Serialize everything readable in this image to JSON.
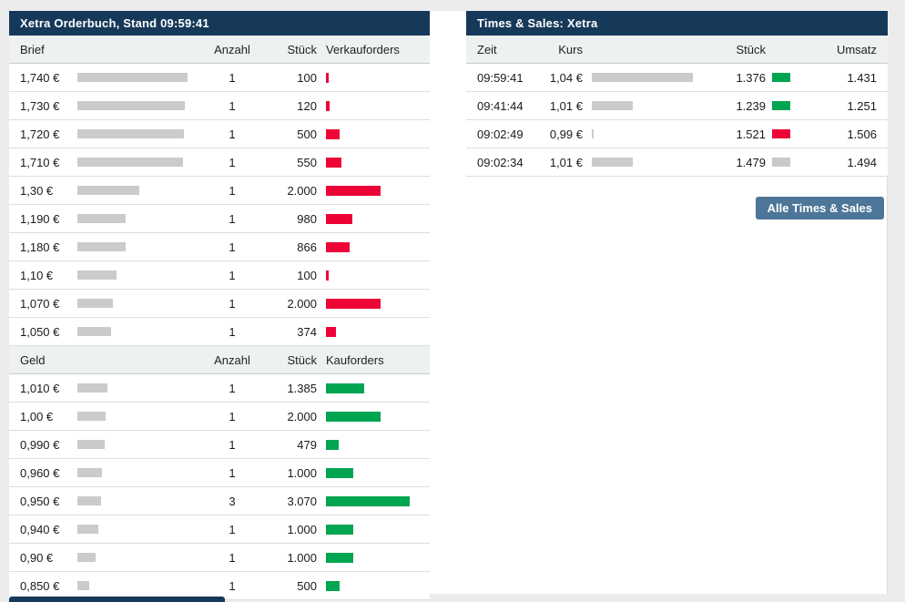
{
  "colors": {
    "navy_header": "#16395a",
    "ask_red": "#ed0437",
    "bid_green": "#00a551",
    "depth_bar_gray": "#cbcbcb",
    "neutral_gray": "#c9c9c9",
    "button_blue": "#4d7698",
    "page_bg": "#ececec",
    "band_bg": "#eef1f1"
  },
  "orderbook": {
    "title": "Xetra Orderbuch, Stand 09:59:41",
    "ask_header": {
      "price": "Brief",
      "count": "Anzahl",
      "size": "Stück",
      "orders": "Verkauforders"
    },
    "bid_header": {
      "price": "Geld",
      "count": "Anzahl",
      "size": "Stück",
      "orders": "Kauforders"
    },
    "ask_rows": [
      {
        "price": "1,740 €",
        "price_bar": 121,
        "count": "1",
        "size": "100",
        "order_bar": 3
      },
      {
        "price": "1,730 €",
        "price_bar": 118,
        "count": "1",
        "size": "120",
        "order_bar": 4
      },
      {
        "price": "1,720 €",
        "price_bar": 117,
        "count": "1",
        "size": "500",
        "order_bar": 15
      },
      {
        "price": "1,710 €",
        "price_bar": 116,
        "count": "1",
        "size": "550",
        "order_bar": 17
      },
      {
        "price": "1,30 €",
        "price_bar": 68,
        "count": "1",
        "size": "2.000",
        "order_bar": 60
      },
      {
        "price": "1,190 €",
        "price_bar": 53,
        "count": "1",
        "size": "980",
        "order_bar": 29
      },
      {
        "price": "1,180 €",
        "price_bar": 53,
        "count": "1",
        "size": "866",
        "order_bar": 26
      },
      {
        "price": "1,10 €",
        "price_bar": 43,
        "count": "1",
        "size": "100",
        "order_bar": 3
      },
      {
        "price": "1,070 €",
        "price_bar": 39,
        "count": "1",
        "size": "2.000",
        "order_bar": 60
      },
      {
        "price": "1,050 €",
        "price_bar": 37,
        "count": "1",
        "size": "374",
        "order_bar": 11
      }
    ],
    "bid_rows": [
      {
        "price": "1,010 €",
        "price_bar": 33,
        "count": "1",
        "size": "1.385",
        "order_bar": 42
      },
      {
        "price": "1,00 €",
        "price_bar": 31,
        "count": "1",
        "size": "2.000",
        "order_bar": 60
      },
      {
        "price": "0,990 €",
        "price_bar": 30,
        "count": "1",
        "size": "479",
        "order_bar": 14
      },
      {
        "price": "0,960 €",
        "price_bar": 27,
        "count": "1",
        "size": "1.000",
        "order_bar": 30
      },
      {
        "price": "0,950 €",
        "price_bar": 26,
        "count": "3",
        "size": "3.070",
        "order_bar": 92
      },
      {
        "price": "0,940 €",
        "price_bar": 23,
        "count": "1",
        "size": "1.000",
        "order_bar": 30
      },
      {
        "price": "0,90 €",
        "price_bar": 20,
        "count": "1",
        "size": "1.000",
        "order_bar": 30
      },
      {
        "price": "0,850 €",
        "price_bar": 13,
        "count": "1",
        "size": "500",
        "order_bar": 15
      }
    ]
  },
  "times_sales": {
    "title": "Times & Sales: Xetra",
    "header": {
      "time": "Zeit",
      "price": "Kurs",
      "size": "Stück",
      "turnover": "Umsatz"
    },
    "rows": [
      {
        "time": "09:59:41",
        "price": "1,04 €",
        "price_bar": 111,
        "size": "1.376",
        "direction": "up",
        "turnover": "1.431"
      },
      {
        "time": "09:41:44",
        "price": "1,01 €",
        "price_bar": 45,
        "size": "1.239",
        "direction": "up",
        "turnover": "1.251"
      },
      {
        "time": "09:02:49",
        "price": "0,99 €",
        "price_bar": 2,
        "size": "1.521",
        "direction": "down",
        "turnover": "1.506"
      },
      {
        "time": "09:02:34",
        "price": "1,01 €",
        "price_bar": 45,
        "size": "1.479",
        "direction": "neutral",
        "turnover": "1.494"
      }
    ],
    "button_label": "Alle Times & Sales"
  }
}
